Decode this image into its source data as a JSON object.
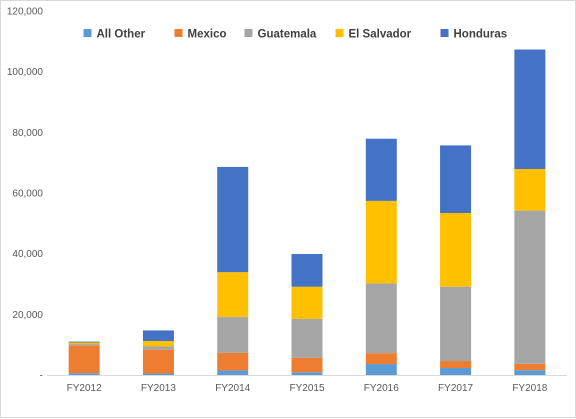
{
  "chart_data": {
    "type": "bar",
    "stacked": true,
    "categories": [
      "FY2012",
      "FY2013",
      "FY2014",
      "FY2015",
      "FY2016",
      "FY2017",
      "FY2018"
    ],
    "series": [
      {
        "name": "All Other",
        "color": "#5B9BD5",
        "values": [
          600,
          500,
          1500,
          900,
          3600,
          2300,
          1600
        ]
      },
      {
        "name": "Mexico",
        "color": "#ED7D31",
        "values": [
          9200,
          7800,
          5800,
          4800,
          3600,
          2300,
          2100
        ]
      },
      {
        "name": "Guatemala",
        "color": "#A5A5A5",
        "values": [
          400,
          1100,
          11800,
          12800,
          23000,
          24500,
          50500
        ]
      },
      {
        "name": "El Salvador",
        "color": "#FFC000",
        "values": [
          500,
          1800,
          14800,
          10600,
          27200,
          24300,
          13700
        ]
      },
      {
        "name": "Honduras",
        "color": "#4472C4",
        "values": [
          300,
          3500,
          34700,
          10800,
          20500,
          22300,
          39400
        ]
      }
    ],
    "ylim": [
      0,
      120000
    ],
    "yticks": [
      "-",
      "20,000",
      "40,000",
      "60,000",
      "80,000",
      "100,000",
      "120,000"
    ],
    "legend_position": "top-center",
    "grid": false
  }
}
